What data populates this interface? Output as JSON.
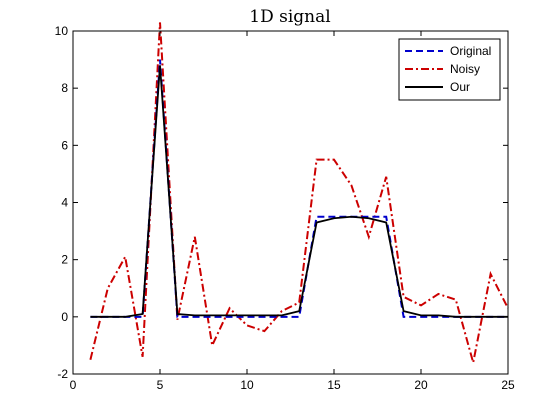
{
  "chart_data": {
    "type": "line",
    "title": "1D signal",
    "xlabel": "",
    "ylabel": "",
    "xlim": [
      0,
      25
    ],
    "ylim": [
      -2,
      10
    ],
    "xticks": [
      0,
      5,
      10,
      15,
      20,
      25
    ],
    "yticks": [
      -2,
      0,
      2,
      4,
      6,
      8,
      10
    ],
    "grid": false,
    "legend_position": "top-right",
    "x": [
      1,
      2,
      3,
      4,
      5,
      6,
      7,
      8,
      9,
      10,
      11,
      12,
      13,
      14,
      15,
      16,
      17,
      18,
      19,
      20,
      21,
      22,
      23,
      24,
      25
    ],
    "series": [
      {
        "name": "Original",
        "color": "#0000cc",
        "style": "dashed",
        "values": [
          0,
          0,
          0,
          0,
          9,
          0,
          0,
          0,
          0,
          0,
          0,
          0,
          0,
          3.5,
          3.5,
          3.5,
          3.5,
          3.5,
          0,
          0,
          0,
          0,
          0,
          0,
          0
        ]
      },
      {
        "name": "Noisy",
        "color": "#cc0000",
        "style": "dashdot",
        "values": [
          -1.5,
          1.0,
          2.1,
          -1.4,
          10.3,
          -0.1,
          2.8,
          -1.0,
          0.3,
          -0.3,
          -0.5,
          0.2,
          0.5,
          5.5,
          5.5,
          4.6,
          2.8,
          4.9,
          0.7,
          0.4,
          0.8,
          0.6,
          -1.6,
          1.5,
          0.3
        ]
      },
      {
        "name": "Our",
        "color": "#000000",
        "style": "solid",
        "values": [
          0,
          0,
          0,
          0.1,
          8.8,
          0.1,
          0.05,
          0.05,
          0.05,
          0.05,
          0.05,
          0.05,
          0.2,
          3.3,
          3.45,
          3.5,
          3.45,
          3.3,
          0.2,
          0.05,
          0.05,
          0,
          0,
          0,
          0
        ]
      }
    ]
  }
}
